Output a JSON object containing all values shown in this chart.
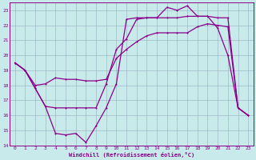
{
  "bg_color": "#c8eaea",
  "line_color": "#8b008b",
  "grid_color": "#a0b8c8",
  "xlabel": "Windchill (Refroidissement éolien,°C)",
  "xlim": [
    -0.5,
    23.5
  ],
  "ylim": [
    14,
    23.5
  ],
  "yticks": [
    14,
    15,
    16,
    17,
    18,
    19,
    20,
    21,
    22,
    23
  ],
  "xticks": [
    0,
    1,
    2,
    3,
    4,
    5,
    6,
    7,
    8,
    9,
    10,
    11,
    12,
    13,
    14,
    15,
    16,
    17,
    18,
    19,
    20,
    21,
    22,
    23
  ],
  "series1_x": [
    0,
    1,
    2,
    3,
    4,
    5,
    6,
    7,
    8,
    9,
    10,
    11,
    12,
    13,
    14,
    15,
    16,
    17,
    18,
    19,
    20,
    21,
    22,
    23
  ],
  "series1_y": [
    19.5,
    19.0,
    17.8,
    16.6,
    14.8,
    14.7,
    14.8,
    14.2,
    15.3,
    16.5,
    18.1,
    22.4,
    22.5,
    22.5,
    22.5,
    23.2,
    23.0,
    23.3,
    22.6,
    22.6,
    21.8,
    20.0,
    16.5,
    16.0
  ],
  "series2_x": [
    0,
    1,
    2,
    3,
    4,
    5,
    6,
    7,
    8,
    9,
    10,
    11,
    12,
    13,
    14,
    15,
    16,
    17,
    18,
    19,
    20,
    21,
    22,
    23
  ],
  "series2_y": [
    19.5,
    19.0,
    18.0,
    18.1,
    18.5,
    18.4,
    18.4,
    18.3,
    18.3,
    18.4,
    19.8,
    20.4,
    20.9,
    21.3,
    21.5,
    21.5,
    21.5,
    21.5,
    21.9,
    22.1,
    22.0,
    21.9,
    16.5,
    16.0
  ],
  "series3_x": [
    0,
    1,
    2,
    3,
    4,
    5,
    6,
    7,
    8,
    9,
    10,
    11,
    12,
    13,
    14,
    15,
    16,
    17,
    18,
    19,
    20,
    21,
    22,
    23
  ],
  "series3_y": [
    19.5,
    19.0,
    17.8,
    16.6,
    16.5,
    16.5,
    16.5,
    16.5,
    16.5,
    18.1,
    20.4,
    21.1,
    22.4,
    22.5,
    22.5,
    22.5,
    22.5,
    22.6,
    22.6,
    22.6,
    22.5,
    22.5,
    16.5,
    16.0
  ]
}
